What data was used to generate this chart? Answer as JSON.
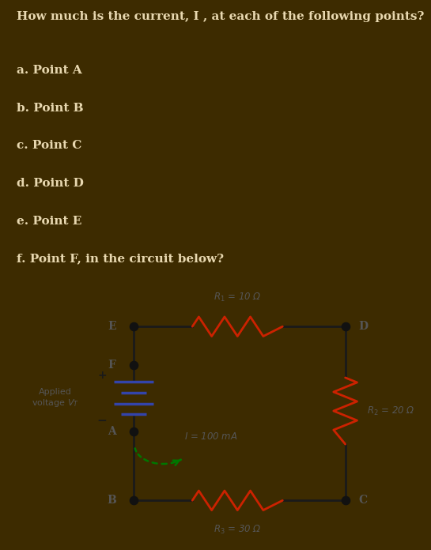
{
  "bg_color": "#3d2b00",
  "text_color": "#e8d8b0",
  "circuit_bg": "#f5f5f5",
  "title": "How much is the current, I , at each of the following points?",
  "questions": [
    "a. Point A",
    "b. Point B",
    "c. Point C",
    "d. Point D",
    "e. Point E",
    "f. Point F, in the circuit below?"
  ],
  "wire_color": "#1a1a1a",
  "resistor_color": "#cc2200",
  "battery_color": "#3344aa",
  "node_color": "#111111",
  "arrow_color": "#007700",
  "label_color": "#555555",
  "plus_minus_color": "#1a1a1a"
}
